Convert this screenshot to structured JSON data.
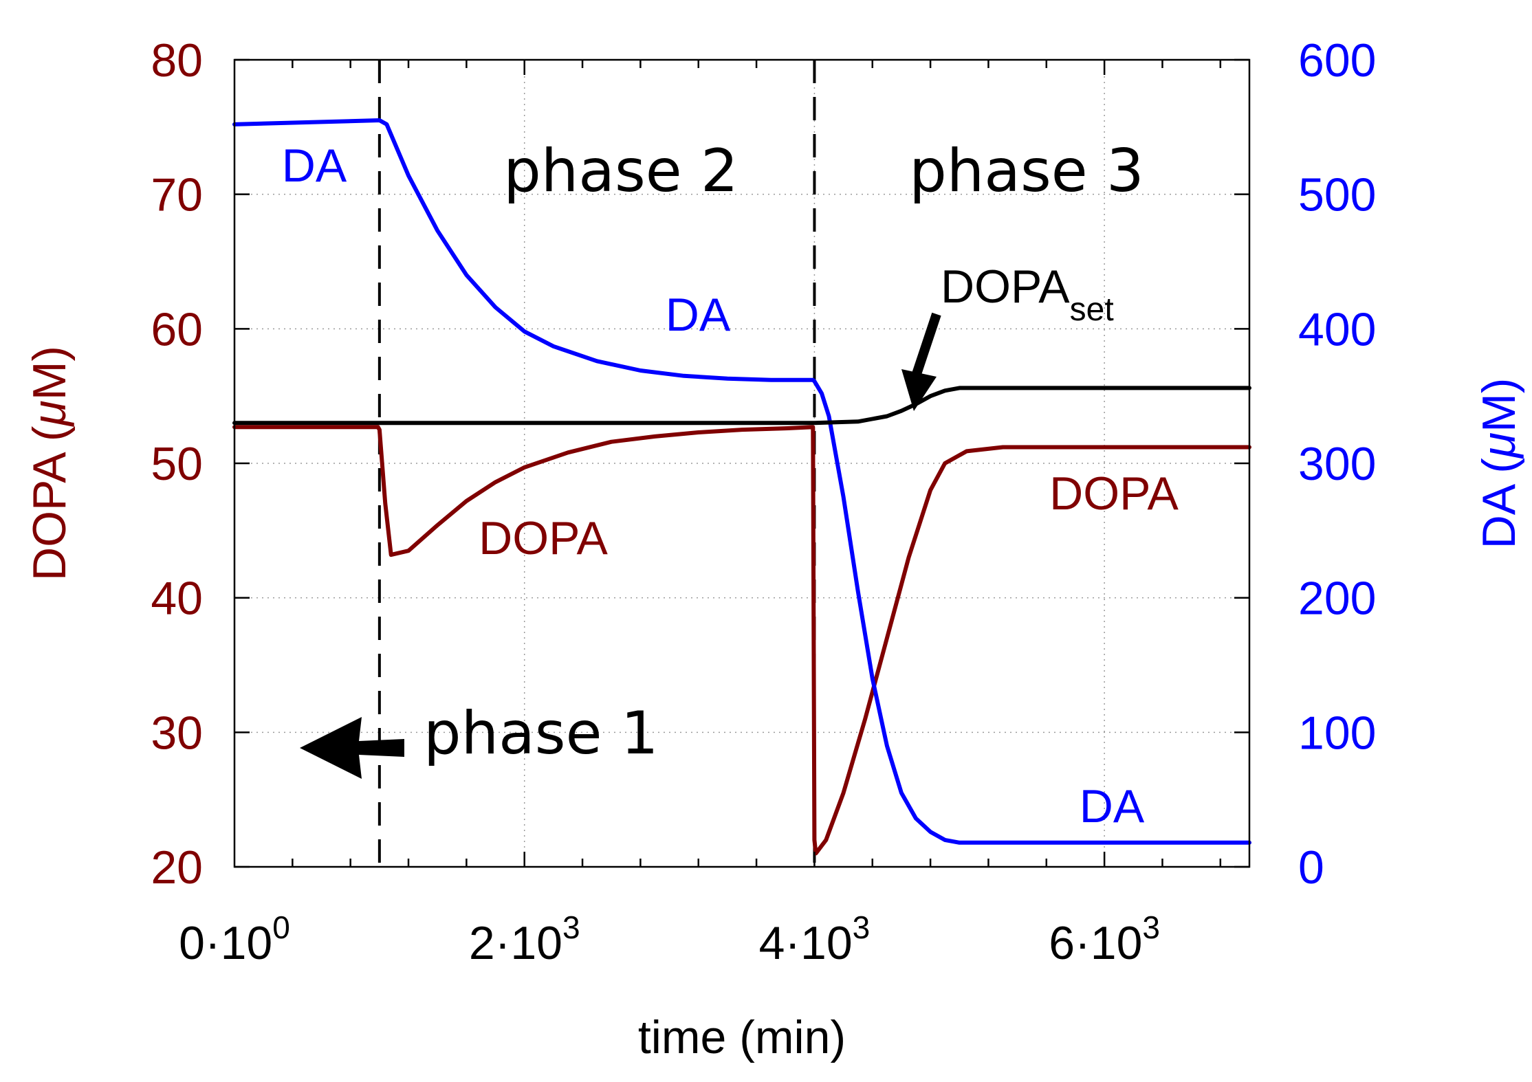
{
  "chart_data": {
    "type": "line",
    "title": "",
    "xlabel": "time (min)",
    "ylabel_left": {
      "text": "DOPA (",
      "mu": "μ",
      "after": "M)"
    },
    "ylabel_right": {
      "text": "DA (",
      "mu": "μ",
      "after": "M)"
    },
    "xlim": [
      0,
      7000
    ],
    "ylim_left": [
      20,
      80
    ],
    "ylim_right": [
      0,
      600
    ],
    "x_ticks": [
      {
        "value": 0,
        "mant": "0·10",
        "exp": "0"
      },
      {
        "value": 2000,
        "mant": "2·10",
        "exp": "3"
      },
      {
        "value": 4000,
        "mant": "4·10",
        "exp": "3"
      },
      {
        "value": 6000,
        "mant": "6·10",
        "exp": "3"
      }
    ],
    "x_minor_step": 400,
    "y_left_ticks": [
      "20",
      "30",
      "40",
      "50",
      "60",
      "70",
      "80"
    ],
    "y_right_ticks": [
      "0",
      "100",
      "200",
      "300",
      "400",
      "500",
      "600"
    ],
    "grid": true,
    "phase_boundaries": [
      1000,
      4000
    ],
    "colors": {
      "dopa": "#800000",
      "da": "#0000ff",
      "dopa_set": "#000000",
      "axis": "#000000",
      "grid": "#9a9a9a"
    },
    "series": [
      {
        "name": "DOPA",
        "axis": "left",
        "color": "#800000",
        "x": [
          0,
          990,
          1000,
          1040,
          1080,
          1200,
          1400,
          1600,
          1800,
          2000,
          2300,
          2600,
          2900,
          3200,
          3500,
          3800,
          3990,
          4000,
          4010,
          4080,
          4200,
          4350,
          4500,
          4650,
          4800,
          4900,
          5050,
          5300,
          6000,
          7000
        ],
        "y": [
          52.7,
          52.7,
          52.5,
          47.0,
          43.2,
          43.5,
          45.4,
          47.2,
          48.6,
          49.7,
          50.8,
          51.6,
          52.0,
          52.3,
          52.5,
          52.6,
          52.7,
          22.0,
          21.0,
          22.0,
          25.5,
          31.0,
          37.0,
          43.0,
          48.0,
          50.0,
          50.9,
          51.2,
          51.2,
          51.2
        ]
      },
      {
        "name": "DA",
        "axis": "right",
        "color": "#0000ff",
        "x": [
          0,
          1000,
          1050,
          1200,
          1400,
          1600,
          1800,
          2000,
          2200,
          2500,
          2800,
          3100,
          3400,
          3700,
          3990,
          4000,
          4050,
          4100,
          4200,
          4300,
          4400,
          4500,
          4600,
          4700,
          4800,
          4900,
          5000,
          5100,
          5300,
          7000
        ],
        "y": [
          552,
          555,
          552,
          514,
          473,
          440,
          416,
          398,
          387,
          376,
          369,
          365,
          363,
          362,
          362,
          361,
          352,
          335,
          275,
          205,
          140,
          90,
          55,
          36,
          26,
          20,
          18,
          18,
          18,
          18
        ]
      },
      {
        "name": "DOPAset",
        "axis": "left",
        "color": "#000000",
        "x": [
          0,
          1000,
          3000,
          4000,
          4300,
          4500,
          4600,
          4700,
          4800,
          4900,
          5000,
          5200,
          7000
        ],
        "y": [
          53.0,
          53.0,
          53.0,
          53.0,
          53.1,
          53.5,
          53.9,
          54.4,
          55.0,
          55.4,
          55.6,
          55.6,
          55.6
        ]
      }
    ],
    "annotations": {
      "phase1": "phase 1",
      "phase2": "phase 2",
      "phase3": "phase 3",
      "da_1": "DA",
      "da_2": "DA",
      "da_3": "DA",
      "dopa_1": "DOPA",
      "dopa_2": "DOPA",
      "dopaset_main": "DOPA",
      "dopaset_sub": "set"
    }
  }
}
